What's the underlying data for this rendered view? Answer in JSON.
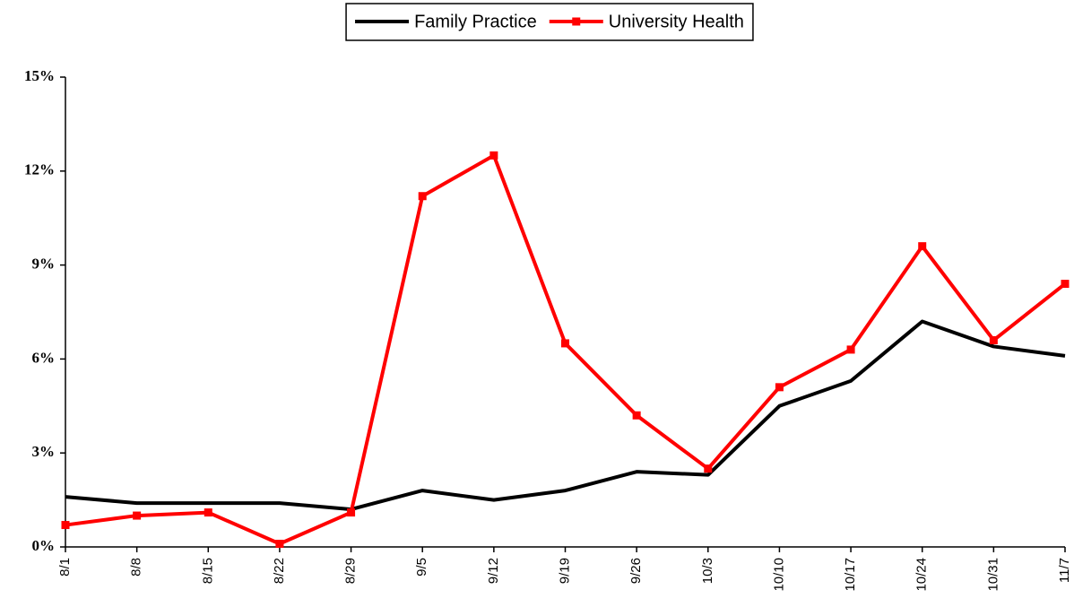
{
  "chart_data": {
    "type": "line",
    "categories": [
      "8/1",
      "8/8",
      "8/15",
      "8/22",
      "8/29",
      "9/5",
      "9/12",
      "9/19",
      "9/26",
      "10/3",
      "10/10",
      "10/17",
      "10/24",
      "10/31",
      "11/7"
    ],
    "series": [
      {
        "name": "Family Practice",
        "color": "#000000",
        "marker": false,
        "values": [
          1.6,
          1.4,
          1.4,
          1.4,
          1.2,
          1.8,
          1.5,
          1.8,
          2.4,
          2.3,
          4.5,
          5.3,
          7.2,
          6.4,
          6.1
        ]
      },
      {
        "name": "University Health",
        "color": "#ff0000",
        "marker": true,
        "values": [
          0.7,
          1.0,
          1.1,
          0.1,
          1.1,
          11.2,
          12.5,
          6.5,
          4.2,
          2.5,
          5.1,
          6.3,
          9.6,
          6.6,
          8.4
        ]
      }
    ],
    "ylim": [
      0,
      15
    ],
    "yticks": [
      {
        "value": 0,
        "label": "0%"
      },
      {
        "value": 3,
        "label": "3%"
      },
      {
        "value": 6,
        "label": "6%"
      },
      {
        "value": 9,
        "label": "9%"
      },
      {
        "value": 12,
        "label": "12%"
      },
      {
        "value": 15,
        "label": "15%"
      }
    ],
    "legend": "top"
  }
}
